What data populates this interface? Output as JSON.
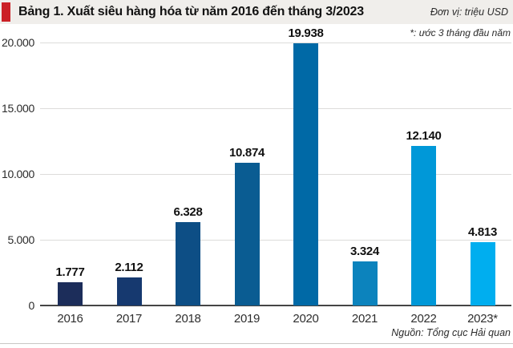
{
  "header": {
    "title": "Bảng 1. Xuất siêu hàng hóa từ năm 2016 đến tháng 3/2023",
    "unit": "Đơn vị: triệu USD"
  },
  "footnote": "*: ước 3 tháng đầu năm",
  "source": "Nguồn: Tổng cục Hải quan",
  "accent_color": "#cb2026",
  "chart_data": {
    "type": "bar",
    "title": "Bảng 1. Xuất siêu hàng hóa từ năm 2016 đến tháng 3/2023",
    "unit": "triệu USD",
    "categories": [
      "2016",
      "2017",
      "2018",
      "2019",
      "2020",
      "2021",
      "2022",
      "2023*"
    ],
    "values": [
      1777,
      2112,
      6328,
      10874,
      19938,
      3324,
      12140,
      4813
    ],
    "value_labels": [
      "1.777",
      "2.112",
      "6.328",
      "10.874",
      "19.938",
      "3.324",
      "12.140",
      "4.813"
    ],
    "bar_colors": [
      "#1c2d5a",
      "#16396f",
      "#0d4e85",
      "#0a5c92",
      "#0069a6",
      "#0c83bd",
      "#0098d8",
      "#00aeef"
    ],
    "ylim": [
      0,
      20000
    ],
    "yticks": [
      0,
      5000,
      10000,
      15000,
      20000
    ],
    "ytick_labels": [
      "0",
      "5.000",
      "10.000",
      "15.000",
      "20.000"
    ],
    "grid": true,
    "legend": false,
    "annotation": "*: ước 3 tháng đầu năm",
    "source": "Nguồn: Tổng cục Hải quan"
  }
}
